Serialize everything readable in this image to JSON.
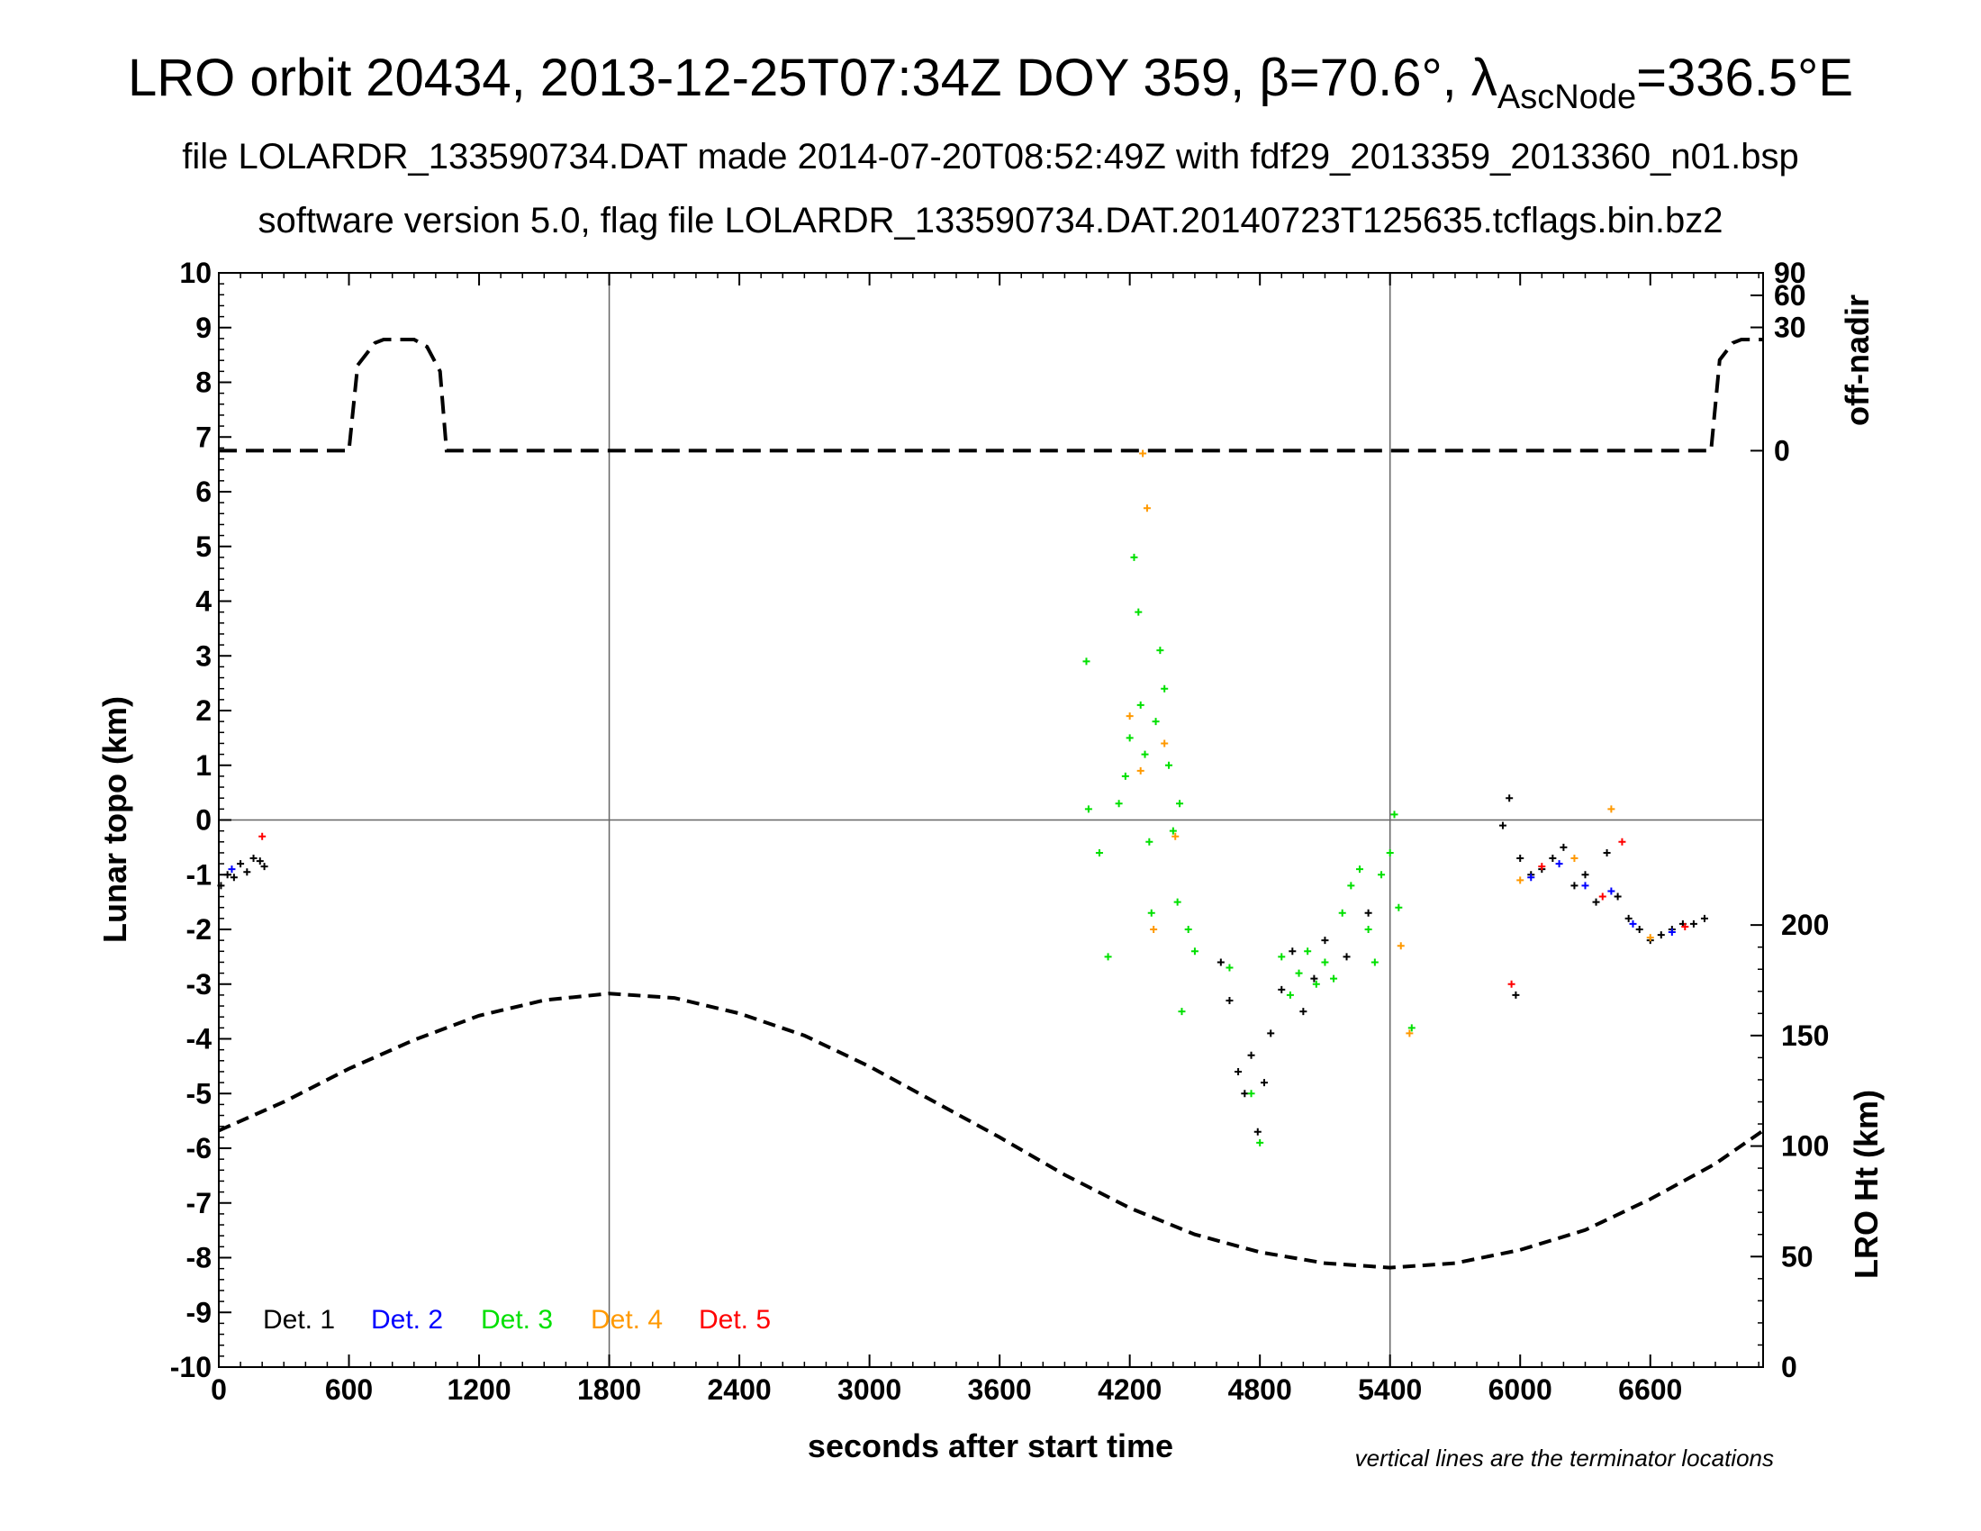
{
  "header": {
    "title_main": "LRO orbit 20434, 2013-12-25T07:34Z DOY 359, β=70.6°, λ",
    "title_sub": "AscNode",
    "title_tail": "=336.5°E",
    "line2": "file LOLARDR_133590734.DAT made 2014-07-20T08:52:49Z with fdf29_2013359_2013360_n01.bsp",
    "line3": "software version 5.0, flag file LOLARDR_133590734.DAT.20140723T125635.tcflags.bin.bz2"
  },
  "chart_data": {
    "type": "scatter",
    "xlabel": "seconds after start time",
    "ylabel": "Lunar topo (km)",
    "xlim": [
      0,
      7120
    ],
    "ylim": [
      -10,
      10
    ],
    "x_ticks": [
      "0",
      "600",
      "1200",
      "1800",
      "2400",
      "3000",
      "3600",
      "4200",
      "4800",
      "5400",
      "6000",
      "6600"
    ],
    "y_ticks": [
      "-10",
      "-9",
      "-8",
      "-7",
      "-6",
      "-5",
      "-4",
      "-3",
      "-2",
      "-1",
      "0",
      "1",
      "2",
      "3",
      "4",
      "5",
      "6",
      "7",
      "8",
      "9",
      "10"
    ],
    "right_axis_top": {
      "label": "off-nadir",
      "ticks": [
        "0",
        "30",
        "60",
        "90"
      ]
    },
    "right_axis_bottom": {
      "label": "LRO Ht (km)",
      "ticks": [
        "0",
        "50",
        "100",
        "150",
        "200"
      ]
    },
    "terminator_lines_x": [
      1800,
      5400
    ],
    "note": "vertical lines are the terminator locations",
    "legend": [
      {
        "name": "Det. 1",
        "color": "#000000"
      },
      {
        "name": "Det. 2",
        "color": "#0000ff"
      },
      {
        "name": "Det. 3",
        "color": "#00e000"
      },
      {
        "name": "Det. 4",
        "color": "#ff9900"
      },
      {
        "name": "Det. 5",
        "color": "#ff0000"
      }
    ],
    "off_nadir_curve": {
      "units": "degrees",
      "points": [
        [
          0,
          0
        ],
        [
          600,
          0
        ],
        [
          640,
          10
        ],
        [
          720,
          20
        ],
        [
          760,
          22
        ],
        [
          900,
          22
        ],
        [
          960,
          18
        ],
        [
          1020,
          8
        ],
        [
          1050,
          0
        ],
        [
          6880,
          0
        ],
        [
          6920,
          12
        ],
        [
          6980,
          20
        ],
        [
          7020,
          22
        ],
        [
          7120,
          22
        ]
      ]
    },
    "altitude_curve": {
      "units": "km",
      "points": [
        [
          0,
          107
        ],
        [
          300,
          120
        ],
        [
          600,
          135
        ],
        [
          900,
          148
        ],
        [
          1200,
          159
        ],
        [
          1500,
          166
        ],
        [
          1800,
          169
        ],
        [
          2100,
          167
        ],
        [
          2400,
          160
        ],
        [
          2700,
          150
        ],
        [
          3000,
          136
        ],
        [
          3300,
          120
        ],
        [
          3600,
          104
        ],
        [
          3900,
          87
        ],
        [
          4200,
          72
        ],
        [
          4500,
          60
        ],
        [
          4800,
          52
        ],
        [
          5100,
          47
        ],
        [
          5400,
          45
        ],
        [
          5700,
          47
        ],
        [
          6000,
          53
        ],
        [
          6300,
          62
        ],
        [
          6600,
          76
        ],
        [
          6900,
          92
        ],
        [
          7120,
          107
        ]
      ]
    },
    "series": [
      {
        "name": "Det. 1",
        "points": [
          [
            10,
            -1.2
          ],
          [
            40,
            -1.0
          ],
          [
            70,
            -1.05
          ],
          [
            100,
            -0.8
          ],
          [
            130,
            -0.95
          ],
          [
            160,
            -0.7
          ],
          [
            190,
            -0.75
          ],
          [
            210,
            -0.85
          ],
          [
            4620,
            -2.6
          ],
          [
            4660,
            -3.3
          ],
          [
            4700,
            -4.6
          ],
          [
            4730,
            -5.0
          ],
          [
            4760,
            -4.3
          ],
          [
            4790,
            -5.7
          ],
          [
            4820,
            -4.8
          ],
          [
            4850,
            -3.9
          ],
          [
            4900,
            -3.1
          ],
          [
            4950,
            -2.4
          ],
          [
            5000,
            -3.5
          ],
          [
            5050,
            -2.9
          ],
          [
            5100,
            -2.2
          ],
          [
            5200,
            -2.5
          ],
          [
            5300,
            -1.7
          ],
          [
            5920,
            -0.1
          ],
          [
            5950,
            0.4
          ],
          [
            5980,
            -3.2
          ],
          [
            6000,
            -0.7
          ],
          [
            6050,
            -1.0
          ],
          [
            6100,
            -0.9
          ],
          [
            6150,
            -0.7
          ],
          [
            6200,
            -0.5
          ],
          [
            6250,
            -1.2
          ],
          [
            6300,
            -1.0
          ],
          [
            6350,
            -1.5
          ],
          [
            6400,
            -0.6
          ],
          [
            6450,
            -1.4
          ],
          [
            6500,
            -1.8
          ],
          [
            6550,
            -2.0
          ],
          [
            6600,
            -2.2
          ],
          [
            6650,
            -2.1
          ],
          [
            6700,
            -2.0
          ],
          [
            6750,
            -1.9
          ],
          [
            6800,
            -1.9
          ],
          [
            6850,
            -1.8
          ]
        ]
      },
      {
        "name": "Det. 2",
        "points": [
          [
            60,
            -0.9
          ],
          [
            6050,
            -1.05
          ],
          [
            6180,
            -0.8
          ],
          [
            6300,
            -1.2
          ],
          [
            6420,
            -1.3
          ],
          [
            6520,
            -1.9
          ],
          [
            6700,
            -2.05
          ]
        ]
      },
      {
        "name": "Det. 3",
        "points": [
          [
            4000,
            2.9
          ],
          [
            4010,
            0.2
          ],
          [
            4060,
            -0.6
          ],
          [
            4100,
            -2.5
          ],
          [
            4150,
            0.3
          ],
          [
            4180,
            0.8
          ],
          [
            4200,
            1.5
          ],
          [
            4220,
            4.8
          ],
          [
            4240,
            3.8
          ],
          [
            4250,
            2.1
          ],
          [
            4270,
            1.2
          ],
          [
            4290,
            -0.4
          ],
          [
            4300,
            -1.7
          ],
          [
            4320,
            1.8
          ],
          [
            4340,
            3.1
          ],
          [
            4360,
            2.4
          ],
          [
            4380,
            1.0
          ],
          [
            4400,
            -0.2
          ],
          [
            4420,
            -1.5
          ],
          [
            4430,
            0.3
          ],
          [
            4440,
            -3.5
          ],
          [
            4470,
            -2.0
          ],
          [
            4500,
            -2.4
          ],
          [
            4660,
            -2.7
          ],
          [
            4760,
            -5.0
          ],
          [
            4800,
            -5.9
          ],
          [
            4900,
            -2.5
          ],
          [
            4940,
            -3.2
          ],
          [
            4980,
            -2.8
          ],
          [
            5020,
            -2.4
          ],
          [
            5060,
            -3.0
          ],
          [
            5100,
            -2.6
          ],
          [
            5140,
            -2.9
          ],
          [
            5180,
            -1.7
          ],
          [
            5220,
            -1.2
          ],
          [
            5260,
            -0.9
          ],
          [
            5300,
            -2.0
          ],
          [
            5330,
            -2.6
          ],
          [
            5360,
            -1.0
          ],
          [
            5400,
            -0.6
          ],
          [
            5420,
            0.1
          ],
          [
            5440,
            -1.6
          ],
          [
            5500,
            -3.8
          ]
        ]
      },
      {
        "name": "Det. 4",
        "points": [
          [
            4200,
            1.9
          ],
          [
            4250,
            0.9
          ],
          [
            4260,
            6.7
          ],
          [
            4280,
            5.7
          ],
          [
            4310,
            -2.0
          ],
          [
            4360,
            1.4
          ],
          [
            4410,
            -0.3
          ],
          [
            5450,
            -2.3
          ],
          [
            5490,
            -3.9
          ],
          [
            6000,
            -1.1
          ],
          [
            6250,
            -0.7
          ],
          [
            6420,
            0.2
          ],
          [
            6600,
            -2.15
          ]
        ]
      },
      {
        "name": "Det. 5",
        "points": [
          [
            200,
            -0.3
          ],
          [
            5960,
            -3.0
          ],
          [
            6100,
            -0.85
          ],
          [
            6380,
            -1.4
          ],
          [
            6470,
            -0.4
          ],
          [
            6760,
            -1.95
          ]
        ]
      }
    ]
  }
}
